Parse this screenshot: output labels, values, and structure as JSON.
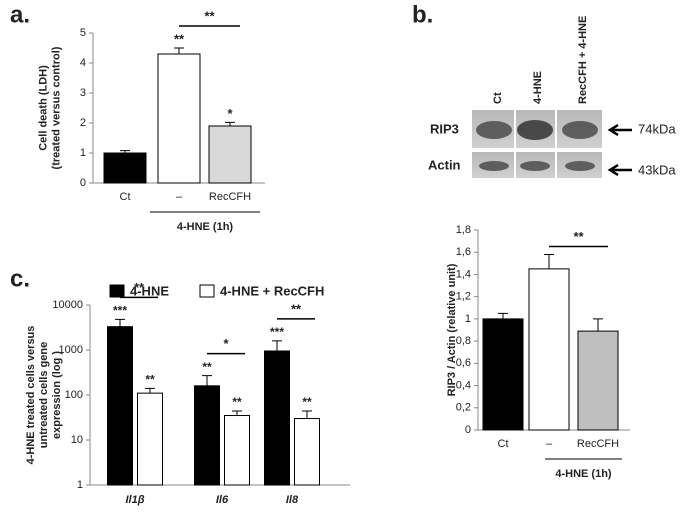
{
  "chart_data": [
    {
      "type": "bar",
      "panel": "a.",
      "ylabel": [
        "Cell death (LDH)",
        "(treated  versus control)"
      ],
      "categories": [
        "Ct",
        "–",
        "RecCFH"
      ],
      "values": [
        1.0,
        4.3,
        1.9
      ],
      "errors": [
        0.08,
        0.2,
        0.12
      ],
      "colors": [
        "#000000",
        "#ffffff",
        "#d9d9d9"
      ],
      "labels": [
        null,
        "**",
        "*"
      ],
      "bracket_label": "**",
      "group_label": "4-HNE (1h)",
      "ylim": [
        0,
        5
      ],
      "yticks": [
        0,
        1,
        2,
        3,
        4,
        5
      ]
    },
    {
      "type": "bar",
      "ylabel": [
        "RIP3 / Actin (relative unit)"
      ],
      "categories": [
        "Ct",
        "–",
        "RecCFH"
      ],
      "values": [
        1.0,
        1.45,
        0.89
      ],
      "errors": [
        0.05,
        0.13,
        0.11
      ],
      "colors": [
        "#000000",
        "#ffffff",
        "#bfbfbf"
      ],
      "bracket_label": "**",
      "group_label": "4-HNE (1h)",
      "ylim": [
        0,
        1.8
      ],
      "yticks": [
        0,
        {
          "value": 0.2,
          "label": "0,2"
        },
        {
          "value": 0.4,
          "label": "0,4"
        },
        {
          "value": 0.6,
          "label": "0,6"
        },
        {
          "value": 0.8,
          "label": "0,8"
        },
        1,
        {
          "value": 1.2,
          "label": "1,2"
        },
        {
          "value": 1.4,
          "label": "1,4"
        },
        {
          "value": 1.6,
          "label": "1,6"
        },
        {
          "value": 1.8,
          "label": "1,8"
        }
      ]
    },
    {
      "type": "grouped_bar",
      "panel": "c.",
      "log_scale": true,
      "ylabel": [
        "4-HNE treated cells versus",
        "untreated cells gene",
        "expression (log )"
      ],
      "categories": [
        "Il1β",
        "Il6",
        "Il8"
      ],
      "series": [
        {
          "name": "4-HNE",
          "color": "#000000",
          "values": [
            3300,
            160,
            950
          ],
          "errors": [
            1500,
            110,
            650
          ],
          "labels": [
            "***",
            "**",
            "***"
          ]
        },
        {
          "name": "4-HNE + RecCFH",
          "color": "#ffffff",
          "values": [
            110,
            35,
            30
          ],
          "errors": [
            30,
            9,
            14
          ],
          "labels": [
            "**",
            "**",
            "**"
          ]
        }
      ],
      "bracket_labels": [
        "**",
        "*",
        "**"
      ],
      "ylim": [
        1,
        10000
      ],
      "yticks": [
        1,
        10,
        100,
        1000,
        10000
      ]
    }
  ],
  "blot": {
    "panel": "b.",
    "lanes": [
      "Ct",
      "4-HNE",
      "RecCFH + 4-HNE"
    ],
    "rows": [
      "RIP3",
      "Actin"
    ],
    "sizes": [
      "74kDa",
      "43kDa"
    ]
  }
}
